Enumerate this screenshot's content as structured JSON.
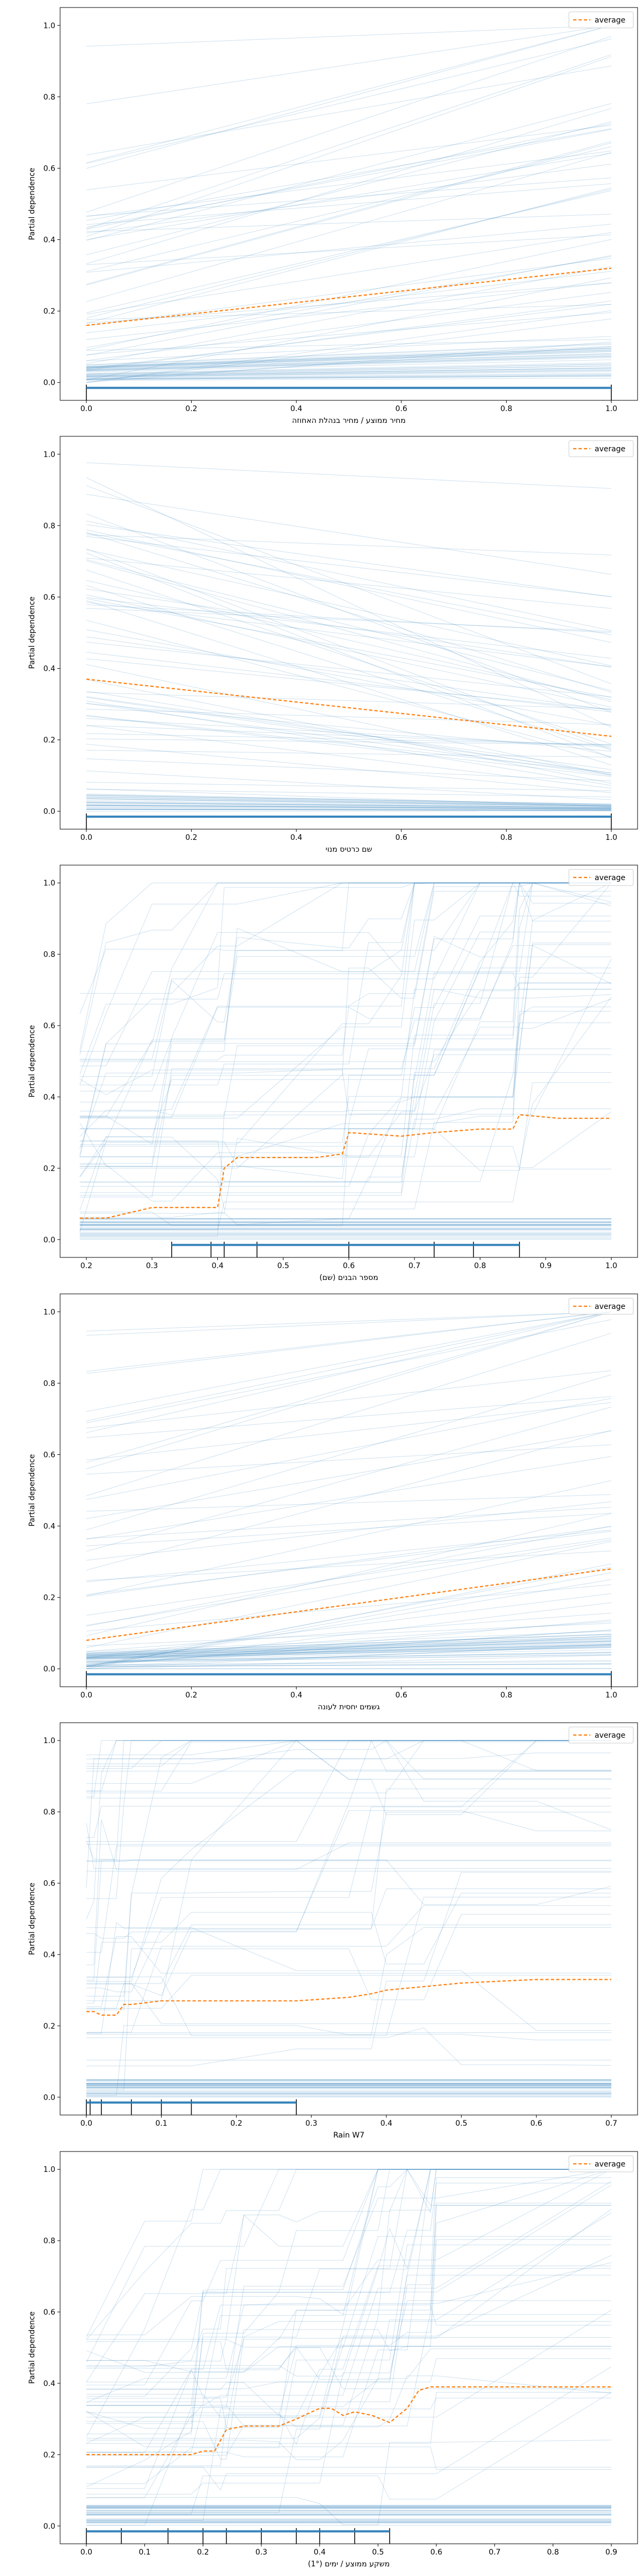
{
  "chart_data": [
    {
      "type": "line",
      "xlabel": "מחיר ממוצע / מחיר בנהלת האחוזה",
      "ylabel": "Partial dependence",
      "xlim": [
        -0.05,
        1.05
      ],
      "ylim": [
        -0.05,
        1.05
      ],
      "xticks": [
        0.0,
        0.2,
        0.4,
        0.6,
        0.8,
        1.0
      ],
      "xtick_labels": [
        "0.0",
        "0.2",
        "0.4",
        "0.6",
        "0.8",
        "1.0"
      ],
      "yticks": [
        0.0,
        0.2,
        0.4,
        0.6,
        0.8,
        1.0
      ],
      "ytick_labels": [
        "0.0",
        "0.2",
        "0.4",
        "0.6",
        "0.8",
        "1.0"
      ],
      "legend": "average",
      "legend_loc": "upper right",
      "grid": false,
      "ice_pattern": "linear",
      "average": {
        "x": [
          0.0,
          1.0
        ],
        "y": [
          0.16,
          0.32
        ]
      },
      "deciles": [
        0.0,
        1.0
      ]
    },
    {
      "type": "line",
      "xlabel": "שם כרטיס מנוי",
      "ylabel": "Partial dependence",
      "xlim": [
        -0.05,
        1.05
      ],
      "ylim": [
        -0.05,
        1.05
      ],
      "xticks": [
        0.0,
        0.2,
        0.4,
        0.6,
        0.8,
        1.0
      ],
      "xtick_labels": [
        "0.0",
        "0.2",
        "0.4",
        "0.6",
        "0.8",
        "1.0"
      ],
      "yticks": [
        0.0,
        0.2,
        0.4,
        0.6,
        0.8,
        1.0
      ],
      "ytick_labels": [
        "0.0",
        "0.2",
        "0.4",
        "0.6",
        "0.8",
        "1.0"
      ],
      "legend": "average",
      "legend_loc": "upper right",
      "grid": false,
      "ice_pattern": "linear_down",
      "average": {
        "x": [
          0.0,
          1.0
        ],
        "y": [
          0.37,
          0.21
        ]
      },
      "deciles": [
        0.0,
        1.0
      ]
    },
    {
      "type": "line",
      "xlabel": "מספר הבנים (שם)",
      "ylabel": "Partial dependence",
      "xlim": [
        0.16,
        1.04
      ],
      "ylim": [
        -0.05,
        1.05
      ],
      "xticks": [
        0.2,
        0.3,
        0.4,
        0.5,
        0.6,
        0.7,
        0.8,
        0.9,
        1.0
      ],
      "xtick_labels": [
        "0.2",
        "0.3",
        "0.4",
        "0.5",
        "0.6",
        "0.7",
        "0.8",
        "0.9",
        "1.0"
      ],
      "yticks": [
        0.0,
        0.2,
        0.4,
        0.6,
        0.8,
        1.0
      ],
      "ytick_labels": [
        "0.0",
        "0.2",
        "0.4",
        "0.6",
        "0.8",
        "1.0"
      ],
      "legend": "average",
      "legend_loc": "upper right",
      "grid": false,
      "ice_pattern": "steps",
      "step_points": [
        0.19,
        0.23,
        0.3,
        0.33,
        0.4,
        0.41,
        0.43,
        0.59,
        0.6,
        0.63,
        0.68,
        0.7,
        0.73,
        0.8,
        0.85,
        0.86,
        0.88,
        1.0
      ],
      "average": {
        "x": [
          0.19,
          0.23,
          0.3,
          0.4,
          0.41,
          0.43,
          0.55,
          0.59,
          0.6,
          0.68,
          0.73,
          0.8,
          0.85,
          0.86,
          0.92,
          1.0
        ],
        "y": [
          0.06,
          0.06,
          0.09,
          0.09,
          0.2,
          0.23,
          0.23,
          0.24,
          0.3,
          0.29,
          0.3,
          0.31,
          0.31,
          0.35,
          0.34,
          0.34
        ]
      },
      "deciles": [
        0.33,
        0.39,
        0.41,
        0.46,
        0.6,
        0.73,
        0.79,
        0.86
      ]
    },
    {
      "type": "line",
      "xlabel": "גשמים יחסית לעונה",
      "ylabel": "Partial dependence",
      "xlim": [
        -0.05,
        1.05
      ],
      "ylim": [
        -0.05,
        1.05
      ],
      "xticks": [
        0.0,
        0.2,
        0.4,
        0.6,
        0.8,
        1.0
      ],
      "xtick_labels": [
        "0.0",
        "0.2",
        "0.4",
        "0.6",
        "0.8",
        "1.0"
      ],
      "yticks": [
        0.0,
        0.2,
        0.4,
        0.6,
        0.8,
        1.0
      ],
      "ytick_labels": [
        "0.0",
        "0.2",
        "0.4",
        "0.6",
        "0.8",
        "1.0"
      ],
      "legend": "average",
      "legend_loc": "upper right",
      "grid": false,
      "ice_pattern": "linear",
      "average": {
        "x": [
          0.0,
          1.0
        ],
        "y": [
          0.08,
          0.28
        ]
      },
      "deciles": [
        0.0,
        1.0
      ]
    },
    {
      "type": "line",
      "xlabel": "Rain W7",
      "ylabel": "Partial dependence",
      "xlim": [
        -0.035,
        0.735
      ],
      "ylim": [
        -0.05,
        1.05
      ],
      "xticks": [
        0.0,
        0.1,
        0.2,
        0.3,
        0.4,
        0.5,
        0.6,
        0.7
      ],
      "xtick_labels": [
        "0.0",
        "0.1",
        "0.2",
        "0.3",
        "0.4",
        "0.5",
        "0.6",
        "0.7"
      ],
      "yticks": [
        0.0,
        0.2,
        0.4,
        0.6,
        0.8,
        1.0
      ],
      "ytick_labels": [
        "0.0",
        "0.2",
        "0.4",
        "0.6",
        "0.8",
        "1.0"
      ],
      "legend": "average",
      "legend_loc": "upper right",
      "grid": false,
      "ice_pattern": "rain",
      "step_points": [
        0.0,
        0.01,
        0.02,
        0.04,
        0.05,
        0.06,
        0.1,
        0.14,
        0.28,
        0.35,
        0.38,
        0.4,
        0.45,
        0.5,
        0.6,
        0.7
      ],
      "average": {
        "x": [
          0.0,
          0.01,
          0.02,
          0.04,
          0.05,
          0.06,
          0.1,
          0.14,
          0.28,
          0.35,
          0.38,
          0.4,
          0.45,
          0.5,
          0.6,
          0.7
        ],
        "y": [
          0.24,
          0.24,
          0.23,
          0.23,
          0.26,
          0.26,
          0.27,
          0.27,
          0.27,
          0.28,
          0.29,
          0.3,
          0.31,
          0.32,
          0.33,
          0.33
        ]
      },
      "deciles": [
        0.0,
        0.005,
        0.02,
        0.06,
        0.1,
        0.14,
        0.28
      ]
    },
    {
      "type": "line",
      "xlabel": "משקע ממוצע / ימים (1°)",
      "ylabel": "Partial dependence",
      "xlim": [
        -0.045,
        0.945
      ],
      "ylim": [
        -0.05,
        1.05
      ],
      "xticks": [
        0.0,
        0.1,
        0.2,
        0.3,
        0.4,
        0.5,
        0.6,
        0.7,
        0.8,
        0.9
      ],
      "xtick_labels": [
        "0.0",
        "0.1",
        "0.2",
        "0.3",
        "0.4",
        "0.5",
        "0.6",
        "0.7",
        "0.8",
        "0.9"
      ],
      "yticks": [
        0.0,
        0.2,
        0.4,
        0.6,
        0.8,
        1.0
      ],
      "ytick_labels": [
        "0.0",
        "0.2",
        "0.4",
        "0.6",
        "0.8",
        "1.0"
      ],
      "legend": "average",
      "legend_loc": "upper right",
      "grid": false,
      "ice_pattern": "steps",
      "step_points": [
        0.0,
        0.1,
        0.18,
        0.2,
        0.23,
        0.24,
        0.27,
        0.33,
        0.36,
        0.4,
        0.44,
        0.5,
        0.52,
        0.55,
        0.59,
        0.6,
        0.9
      ],
      "average": {
        "x": [
          0.0,
          0.18,
          0.2,
          0.22,
          0.24,
          0.27,
          0.33,
          0.36,
          0.4,
          0.42,
          0.44,
          0.46,
          0.49,
          0.52,
          0.55,
          0.57,
          0.59,
          0.6,
          0.9
        ],
        "y": [
          0.2,
          0.2,
          0.21,
          0.21,
          0.27,
          0.28,
          0.28,
          0.3,
          0.33,
          0.33,
          0.31,
          0.32,
          0.31,
          0.29,
          0.33,
          0.38,
          0.39,
          0.39,
          0.39
        ]
      },
      "deciles": [
        0.0,
        0.06,
        0.14,
        0.2,
        0.24,
        0.3,
        0.36,
        0.4,
        0.46,
        0.52
      ]
    }
  ]
}
